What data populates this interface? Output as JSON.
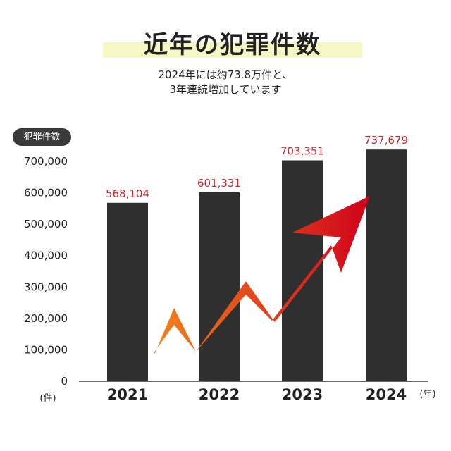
{
  "colors": {
    "bar": "#2f2f2f",
    "data_label": "#d2232a",
    "title_band": "#f5f8c4",
    "arrow_start": "#f7941d",
    "arrow_end": "#d0021b"
  },
  "header": {
    "title": "近年の犯罪件数",
    "subtitle_line1": "2024年には約73.8万件と、",
    "subtitle_line2": "3年連続増加しています"
  },
  "chart_data": {
    "type": "bar",
    "title": "近年の犯罪件数",
    "ylabel": "犯罪件数",
    "xlabel": "",
    "y_unit_label": "(件)",
    "x_unit_label": "(年)",
    "categories": [
      "2021",
      "2022",
      "2023",
      "2024"
    ],
    "values": [
      568104,
      601331,
      703351,
      737679
    ],
    "value_labels": [
      "568,104",
      "601,331",
      "703,351",
      "737,679"
    ],
    "ylim": [
      0,
      700000
    ],
    "y_ticks": [
      0,
      100000,
      200000,
      300000,
      400000,
      500000,
      600000,
      700000
    ],
    "y_tick_labels": [
      "0",
      "100,000",
      "200,000",
      "300,000",
      "400,000",
      "500,000",
      "600,000",
      "700,000"
    ],
    "grid": false,
    "annotation": "upward-trend-arrow"
  }
}
